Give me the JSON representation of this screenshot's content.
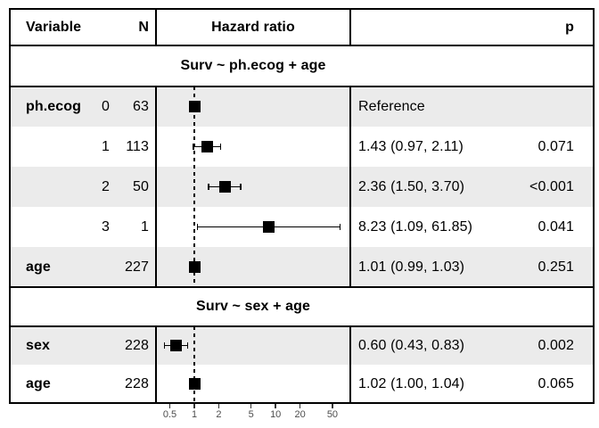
{
  "chart_data": {
    "type": "scatter",
    "variant": "forest-plot",
    "x_scale": "log",
    "x_ticks": [
      0.5,
      1,
      2,
      5,
      10,
      20,
      50
    ],
    "x_tick_labels": [
      "0.5",
      "1",
      "2",
      "5",
      "10",
      "20",
      "50"
    ],
    "x_range": [
      0.34,
      80
    ],
    "reference_line_x": 1,
    "columns": [
      "Variable",
      "N",
      "Hazard ratio",
      "p"
    ],
    "sections": [
      {
        "title": "Surv ~ ph.ecog + age",
        "rows": [
          {
            "variable": "ph.ecog",
            "level": "0",
            "n": "63",
            "hr": 1.0,
            "ci_low": null,
            "ci_high": null,
            "estimate_label": "Reference",
            "p": "",
            "shaded": true
          },
          {
            "variable": "",
            "level": "1",
            "n": "113",
            "hr": 1.43,
            "ci_low": 0.97,
            "ci_high": 2.11,
            "estimate_label": "1.43 (0.97, 2.11)",
            "p": "0.071",
            "shaded": false
          },
          {
            "variable": "",
            "level": "2",
            "n": "50",
            "hr": 2.36,
            "ci_low": 1.5,
            "ci_high": 3.7,
            "estimate_label": "2.36 (1.50, 3.70)",
            "p": "<0.001",
            "shaded": true
          },
          {
            "variable": "",
            "level": "3",
            "n": "1",
            "hr": 8.23,
            "ci_low": 1.09,
            "ci_high": 61.85,
            "estimate_label": "8.23 (1.09, 61.85)",
            "p": "0.041",
            "shaded": false
          },
          {
            "variable": "age",
            "level": "",
            "n": "227",
            "hr": 1.01,
            "ci_low": 0.99,
            "ci_high": 1.03,
            "estimate_label": "1.01 (0.99, 1.03)",
            "p": "0.251",
            "shaded": true
          }
        ]
      },
      {
        "title": "Surv ~ sex + age",
        "rows": [
          {
            "variable": "sex",
            "level": "",
            "n": "228",
            "hr": 0.6,
            "ci_low": 0.43,
            "ci_high": 0.83,
            "estimate_label": "0.60 (0.43, 0.83)",
            "p": "0.002",
            "shaded": true
          },
          {
            "variable": "age",
            "level": "",
            "n": "228",
            "hr": 1.02,
            "ci_low": 1.0,
            "ci_high": 1.04,
            "estimate_label": "1.02 (1.00, 1.04)",
            "p": "0.065",
            "shaded": false
          }
        ]
      }
    ],
    "colors": {
      "marker": "#000000",
      "shaded_row": "#ebebeb",
      "border": "#000000",
      "axis_text": "#4d4d4d"
    }
  }
}
